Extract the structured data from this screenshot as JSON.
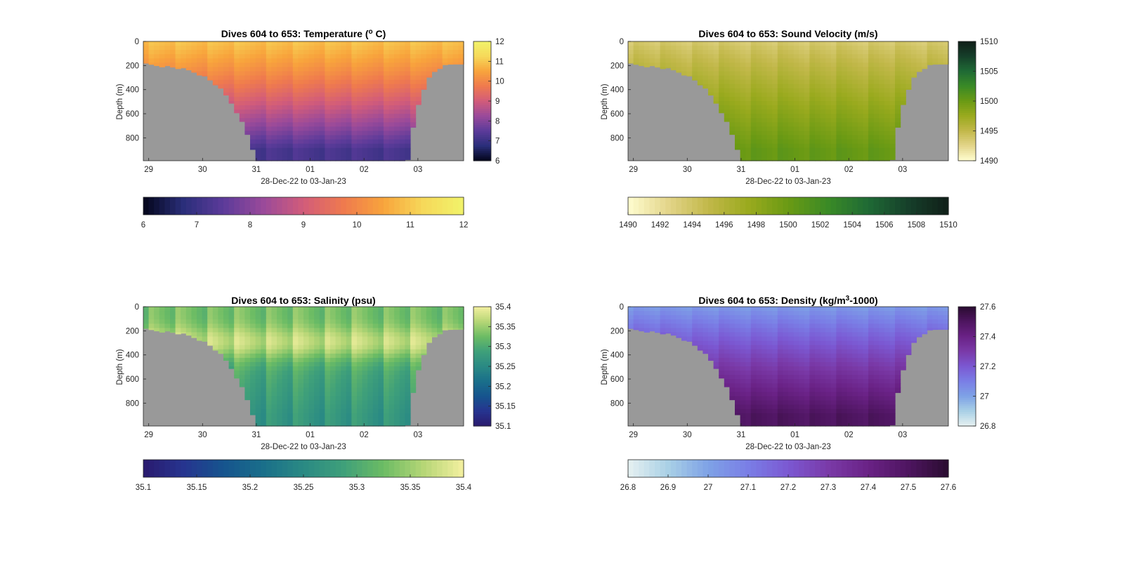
{
  "figure": {
    "background": "#ffffff",
    "land_color": "#999999"
  },
  "chart_data": [
    {
      "type": "heatmap",
      "variable": "temperature",
      "title": "Dives 604 to 653: Temperature (",
      "title_unit_sup": "o",
      "title_unit_rest": " C)",
      "ylabel": "Depth (m)",
      "xlabel": "28-Dec-22 to 03-Jan-23",
      "yticks": [
        "0",
        "200",
        "400",
        "600",
        "800"
      ],
      "xticks": [
        "29",
        "30",
        "31",
        "01",
        "02",
        "03"
      ],
      "ylim": [
        0,
        990
      ],
      "xlim_days": [
        28.9,
        34.85
      ],
      "clim": [
        6,
        12
      ],
      "colormap": "thermal",
      "colormap_stops": [
        "#03051a",
        "#2a2e7a",
        "#5c3b9a",
        "#9a4a9a",
        "#d25c7a",
        "#ef7a4e",
        "#f8a43c",
        "#f6d95a",
        "#f1f36a"
      ],
      "right_colorbar_ticks": [
        "12",
        "11",
        "10",
        "9",
        "8",
        "7",
        "6"
      ],
      "bottom_colorbar_ticks": [
        "6",
        "7",
        "8",
        "9",
        "10",
        "11",
        "12"
      ],
      "surface_value": 10.9,
      "deep_value": 7.2
    },
    {
      "type": "heatmap",
      "variable": "sound_velocity",
      "title": "Dives 604 to 653: Sound Velocity (m/s)",
      "ylabel": "Depth (m)",
      "xlabel": "28-Dec-22 to 03-Jan-23",
      "yticks": [
        "0",
        "200",
        "400",
        "600",
        "800"
      ],
      "xticks": [
        "29",
        "30",
        "31",
        "01",
        "02",
        "03"
      ],
      "ylim": [
        0,
        990
      ],
      "xlim_days": [
        28.9,
        34.85
      ],
      "clim": [
        1490,
        1510
      ],
      "colormap": "speed",
      "colormap_stops": [
        "#fffdd0",
        "#e3d58a",
        "#c2b84a",
        "#9aaa1e",
        "#6a9a14",
        "#3a8a26",
        "#1f6a35",
        "#163f2a",
        "#101f18"
      ],
      "right_colorbar_ticks": [
        "1510",
        "1505",
        "1500",
        "1495",
        "1490"
      ],
      "bottom_colorbar_ticks": [
        "1490",
        "1492",
        "1494",
        "1496",
        "1498",
        "1500",
        "1502",
        "1504",
        "1506",
        "1508",
        "1510"
      ],
      "surface_value": 1493.5,
      "deep_value": 1500.3
    },
    {
      "type": "heatmap",
      "variable": "salinity",
      "title": "Dives 604 to 653: Salinity (psu)",
      "ylabel": "Depth (m)",
      "xlabel": "28-Dec-22 to 03-Jan-23",
      "yticks": [
        "0",
        "200",
        "400",
        "600",
        "800"
      ],
      "xticks": [
        "29",
        "30",
        "31",
        "01",
        "02",
        "03"
      ],
      "ylim": [
        0,
        990
      ],
      "xlim_days": [
        28.9,
        34.85
      ],
      "clim": [
        35.1,
        35.4
      ],
      "colormap": "haline",
      "colormap_stops": [
        "#2a1a6e",
        "#26348f",
        "#16548e",
        "#1a6f8a",
        "#2a8a84",
        "#3fa07a",
        "#6cbc64",
        "#b6d676",
        "#f4f0a0"
      ],
      "right_colorbar_ticks": [
        "35.4",
        "35.35",
        "35.3",
        "35.25",
        "35.2",
        "35.15",
        "35.1"
      ],
      "bottom_colorbar_ticks": [
        "35.1",
        "35.15",
        "35.2",
        "35.25",
        "35.3",
        "35.35",
        "35.4"
      ],
      "surface_value": 35.33,
      "deep_value": 35.27
    },
    {
      "type": "heatmap",
      "variable": "density",
      "title": "Dives 604 to 653: Density (kg/m",
      "title_unit_sup": "3",
      "title_unit_rest": "-1000)",
      "ylabel": "Depth (m)",
      "xlabel": "28-Dec-22 to 03-Jan-23",
      "yticks": [
        "0",
        "200",
        "400",
        "600",
        "800"
      ],
      "xticks": [
        "29",
        "30",
        "31",
        "01",
        "02",
        "03"
      ],
      "ylim": [
        0,
        990
      ],
      "xlim_days": [
        28.9,
        34.85
      ],
      "clim": [
        26.8,
        27.6
      ],
      "colormap": "dense",
      "colormap_stops": [
        "#e6f1f1",
        "#a9d0e6",
        "#7ea2e6",
        "#7a7ee6",
        "#7b58d2",
        "#7a3aa8",
        "#6a2286",
        "#4e1560",
        "#2a0c30"
      ],
      "right_colorbar_ticks": [
        "27.6",
        "27.4",
        "27.2",
        "27",
        "26.8"
      ],
      "bottom_colorbar_ticks": [
        "26.8",
        "26.9",
        "27",
        "27.1",
        "27.2",
        "27.3",
        "27.4",
        "27.5",
        "27.6"
      ],
      "surface_value": 27.02,
      "deep_value": 27.5
    }
  ]
}
